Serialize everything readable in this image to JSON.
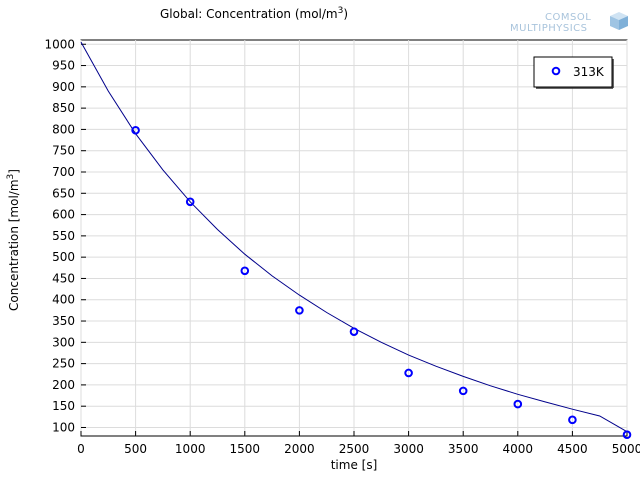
{
  "chart_data": {
    "type": "scatter",
    "title_prefix": "Global: Concentration (mol/m",
    "title_sup": "3",
    "title_suffix": ")",
    "xlabel": "time [s]",
    "ylabel_prefix": "Concentration [mol/m",
    "ylabel_sup": "3",
    "ylabel_suffix": "]",
    "xlim": [
      0,
      5000
    ],
    "ylim": [
      80,
      1010
    ],
    "x_ticks": [
      0,
      500,
      1000,
      1500,
      2000,
      2500,
      3000,
      3500,
      4000,
      4500,
      5000
    ],
    "y_ticks": [
      100,
      150,
      200,
      250,
      300,
      350,
      400,
      450,
      500,
      550,
      600,
      650,
      700,
      750,
      800,
      850,
      900,
      950,
      1000
    ],
    "grid": true,
    "legend_position": "top-right",
    "series": [
      {
        "name": "313K",
        "kind": "markers",
        "marker": "circle-open",
        "color": "#0000ff",
        "x": [
          500,
          1000,
          1500,
          2000,
          2500,
          3000,
          3500,
          4000,
          4500,
          5000
        ],
        "y": [
          798,
          630,
          468,
          375,
          325,
          228,
          186,
          155,
          118,
          83
        ]
      },
      {
        "kind": "line",
        "color": "#00008b",
        "x": [
          0,
          250,
          500,
          750,
          1000,
          1250,
          1500,
          1750,
          2000,
          2250,
          2500,
          2750,
          3000,
          3250,
          3500,
          3750,
          4000,
          4250,
          4500,
          4750,
          5000
        ],
        "y": [
          1005,
          890,
          790,
          705,
          630,
          565,
          507,
          456,
          411,
          370,
          333,
          300,
          270,
          244,
          220,
          198,
          178,
          160,
          143,
          127,
          90
        ]
      }
    ]
  },
  "logo": {
    "line1": "COMSOL",
    "line2": "MULTIPHYSICS",
    "icon": "cube-icon"
  }
}
